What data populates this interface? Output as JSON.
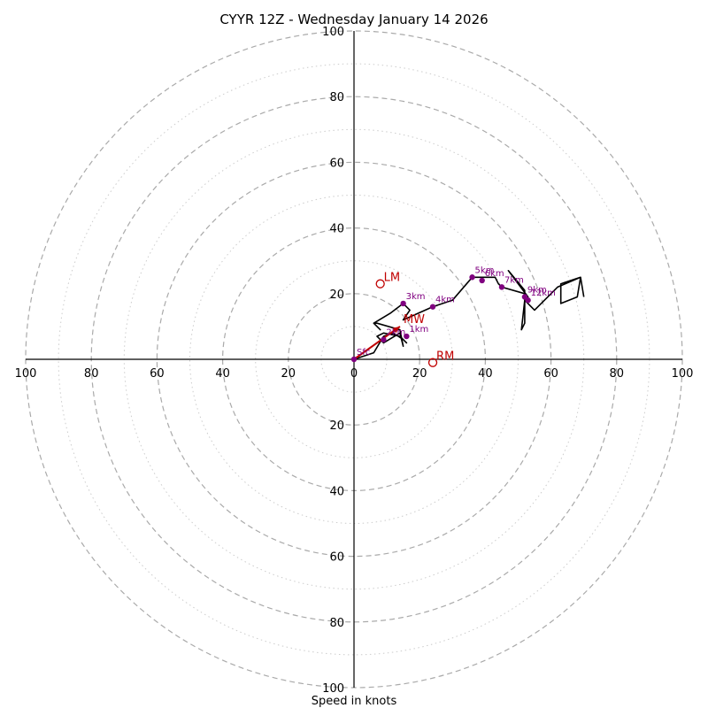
{
  "chart_data": {
    "type": "hodograph",
    "title": "CYYR 12Z - Wednesday January 14 2026",
    "xlabel": "Speed in knots",
    "max_speed": 100,
    "dashed_rings": [
      20,
      40,
      60,
      80,
      100
    ],
    "dotted_rings": [
      10,
      30,
      50,
      70,
      90
    ],
    "x_tick_labels": [
      "100",
      "80",
      "60",
      "40",
      "20",
      "0",
      "20",
      "40",
      "60",
      "80",
      "100"
    ],
    "y_tick_labels": [
      "100",
      "80",
      "60",
      "40",
      "20",
      "20",
      "40",
      "60",
      "80",
      "100"
    ],
    "hodograph_trace": [
      [
        0,
        0
      ],
      [
        6,
        2
      ],
      [
        9,
        7
      ],
      [
        12,
        8
      ],
      [
        15,
        6
      ],
      [
        16,
        5
      ],
      [
        14,
        7
      ],
      [
        9,
        8
      ],
      [
        7,
        7
      ],
      [
        9,
        5
      ],
      [
        14,
        8
      ],
      [
        15,
        4
      ],
      [
        14,
        9
      ],
      [
        7,
        11
      ],
      [
        6,
        11
      ],
      [
        8,
        9
      ],
      [
        6,
        11
      ],
      [
        11,
        14
      ],
      [
        15,
        17
      ],
      [
        17,
        15
      ],
      [
        15,
        12
      ],
      [
        24,
        16
      ],
      [
        30,
        18
      ],
      [
        36,
        25
      ],
      [
        38,
        25
      ],
      [
        39,
        25
      ],
      [
        42,
        25
      ],
      [
        43,
        25
      ],
      [
        44,
        23
      ],
      [
        45,
        22
      ],
      [
        52,
        20
      ],
      [
        53,
        19
      ],
      [
        47,
        27
      ],
      [
        52,
        21
      ],
      [
        52,
        11
      ],
      [
        51,
        9
      ],
      [
        52,
        18
      ],
      [
        55,
        15
      ],
      [
        62,
        22
      ],
      [
        69,
        25
      ],
      [
        68,
        19
      ],
      [
        63,
        17
      ],
      [
        63,
        23
      ],
      [
        69,
        25
      ],
      [
        70,
        19
      ]
    ],
    "height_markers": [
      {
        "label": "Sfc",
        "u": 0,
        "v": 0
      },
      {
        "label": "1km",
        "u": 16,
        "v": 7
      },
      {
        "label": "2km",
        "u": 9,
        "v": 6
      },
      {
        "label": "3km",
        "u": 15,
        "v": 17
      },
      {
        "label": "4km",
        "u": 24,
        "v": 16
      },
      {
        "label": "5km",
        "u": 36,
        "v": 25
      },
      {
        "label": "6km",
        "u": 39,
        "v": 24
      },
      {
        "label": "7km",
        "u": 45,
        "v": 22
      },
      {
        "label": "9km",
        "u": 52,
        "v": 19
      },
      {
        "label": "12km",
        "u": 53,
        "v": 18
      }
    ],
    "mean_wind": {
      "label": "MW",
      "u": 14,
      "v": 10
    },
    "storm_motions": [
      {
        "label": "LM",
        "u": 8,
        "v": 23
      },
      {
        "label": "RM",
        "u": 24,
        "v": -1
      }
    ],
    "colors": {
      "trace": "#000000",
      "markers": "#800080",
      "motions": "#c00000",
      "rings": "#aaaaaa"
    }
  }
}
